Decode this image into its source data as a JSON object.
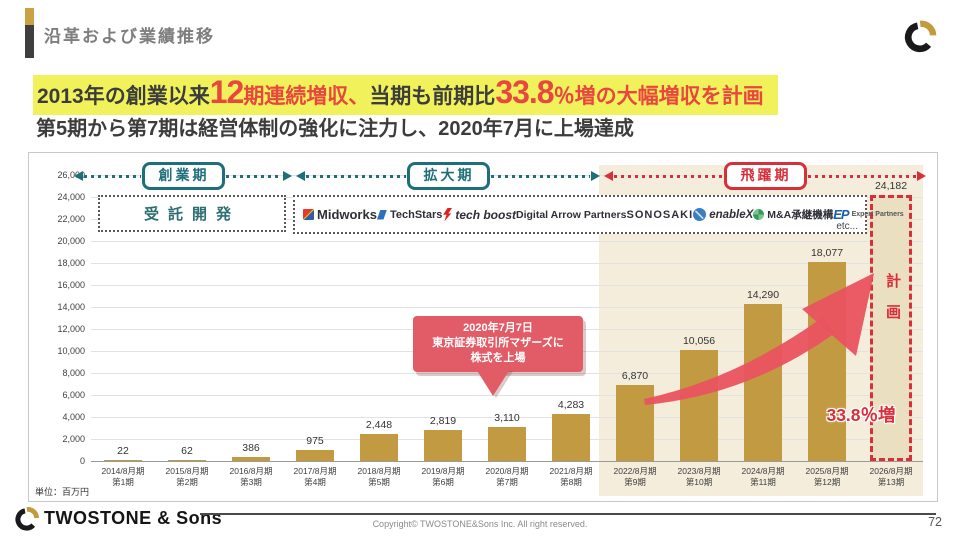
{
  "slide": {
    "title": "沿革および業績推移",
    "page": "72"
  },
  "headline": {
    "seg1": "2013年の創業以来",
    "seg2": "12",
    "seg3": "期連続増収、",
    "seg4": "当期も前期比",
    "seg5": "33.8",
    "seg6": "％増の大幅増収を計画",
    "line2": "第5期から第7期は経営体制の強化に注力し、2020年7月に上場達成"
  },
  "periods": [
    {
      "label": "創業期",
      "theme": "teal"
    },
    {
      "label": "拡大期",
      "theme": "teal"
    },
    {
      "label": "飛躍期",
      "theme": "red"
    }
  ],
  "business": {
    "jutaku": "受託開発",
    "logos": [
      {
        "name": "Midworks",
        "icon": "midworks-icon"
      },
      {
        "name": "TechStars",
        "icon": "techstars-icon"
      },
      {
        "name": "tech boost",
        "icon": "lightning-icon"
      },
      {
        "name": "Digital Arrow Partners",
        "icon": "none"
      },
      {
        "name": "SONOSAKI",
        "icon": "none"
      },
      {
        "name": "enableX",
        "icon": "enablex-globe-icon"
      },
      {
        "name": "M&A承継機構",
        "icon": "ma-globe-icon"
      },
      {
        "name": "Expert Partners",
        "icon": "ep-monogram-icon"
      }
    ],
    "etc": "etc..."
  },
  "chart_data": {
    "type": "bar",
    "categories": [
      "2014/8月期",
      "2015/8月期",
      "2016/8月期",
      "2017/8月期",
      "2018/8月期",
      "2019/8月期",
      "2020/8月期",
      "2021/8月期",
      "2022/8月期",
      "2023/8月期",
      "2024/8月期",
      "2025/8月期",
      "2026/8月期"
    ],
    "terms": [
      "第1期",
      "第2期",
      "第3期",
      "第4期",
      "第5期",
      "第6期",
      "第7期",
      "第8期",
      "第9期",
      "第10期",
      "第11期",
      "第12期",
      "第13期"
    ],
    "values": [
      22,
      62,
      386,
      975,
      2448,
      2819,
      3110,
      4283,
      6870,
      10056,
      14290,
      18077,
      24182
    ],
    "value_labels": [
      "22",
      "62",
      "386",
      "975",
      "2,448",
      "2,819",
      "3,110",
      "4,283",
      "6,870",
      "10,056",
      "14,290",
      "18,077",
      "24,182"
    ],
    "ylim": [
      0,
      26000
    ],
    "ytick_step": 2000,
    "yticks": [
      "26,000",
      "24,000",
      "22,000",
      "20,000",
      "18,000",
      "16,000",
      "14,000",
      "12,000",
      "10,000",
      "8,000",
      "6,000",
      "4,000",
      "2,000",
      "0"
    ],
    "unit": "単位：百万円",
    "bar_color": "#C29A41",
    "grid": true,
    "highlight_region": {
      "start_index": 8,
      "color": "#F4EDDB",
      "label": "飛躍期"
    },
    "plan_bar": {
      "index": 12,
      "label": "計画",
      "growth": "33.8％増"
    }
  },
  "callout": {
    "lines": [
      "2020年7月7日",
      "東京証券取引所マザーズに",
      "株式を上場"
    ]
  },
  "footer": {
    "brand": "TWOSTONE & Sons",
    "copyright": "Copyright© TWOSTONE&Sons Inc. All right reserved."
  }
}
